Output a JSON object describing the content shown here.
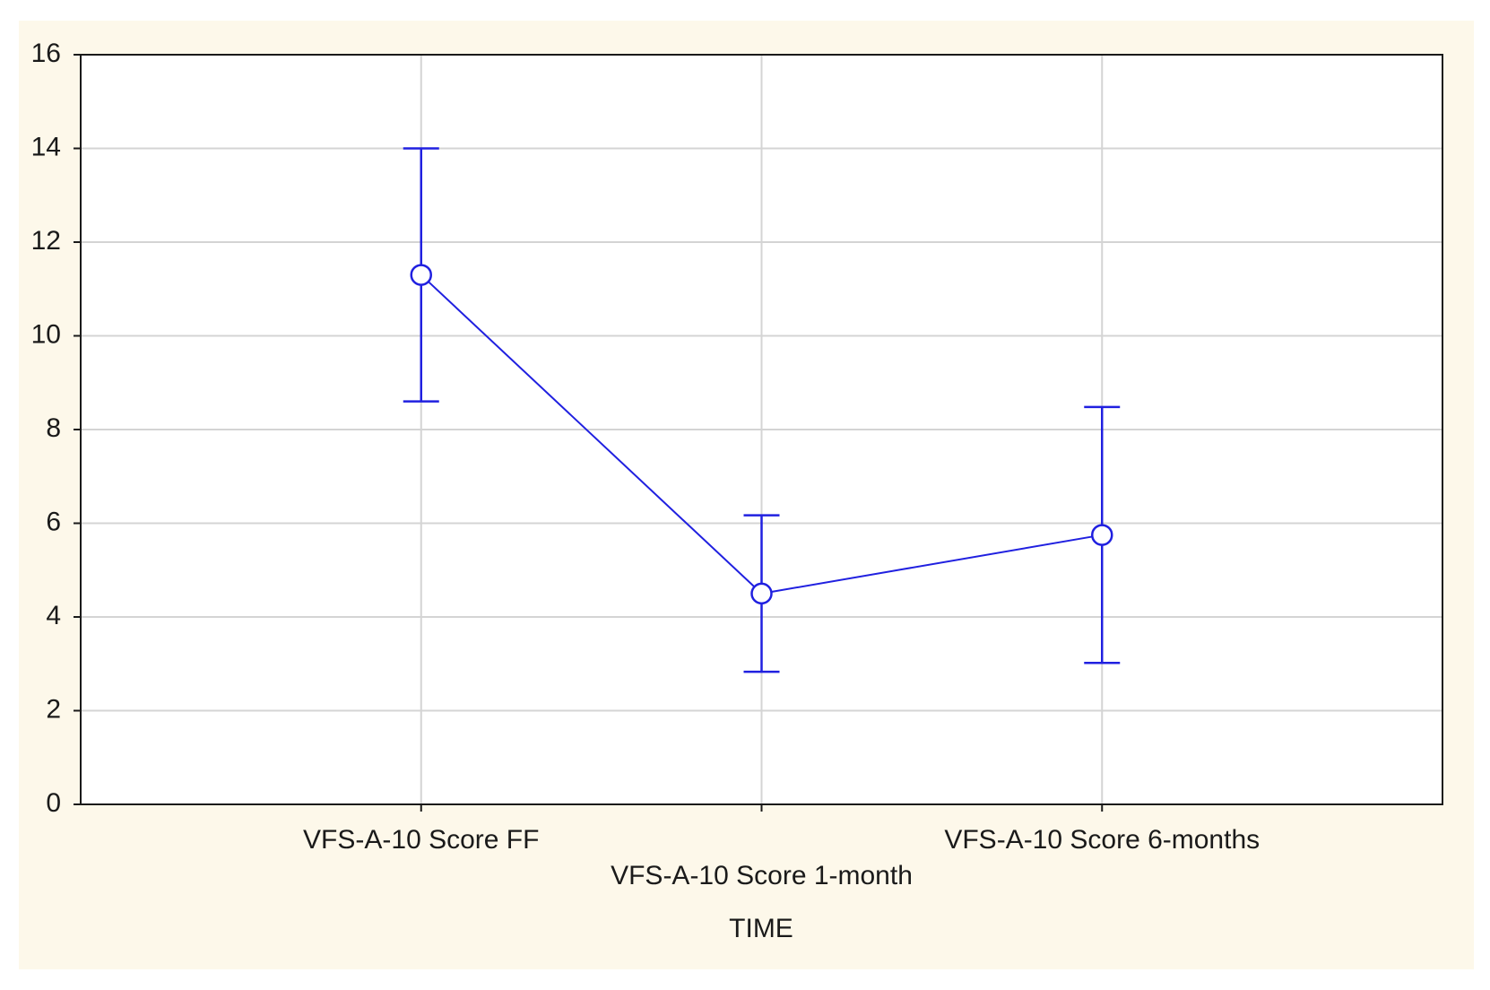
{
  "chart_data": {
    "type": "line",
    "x_label": "TIME",
    "categories": [
      "VFS-A-10 Score FF",
      "VFS-A-10 Score 1-month",
      "VFS-A-10 Score 6-months"
    ],
    "values": [
      11.3,
      4.5,
      5.75
    ],
    "errors": [
      2.7,
      1.67,
      2.73
    ],
    "color": "#2020e0",
    "ylim": [
      0,
      16
    ],
    "yticks": [
      0,
      2,
      4,
      6,
      8,
      10,
      12,
      14,
      16
    ],
    "grid": true
  }
}
